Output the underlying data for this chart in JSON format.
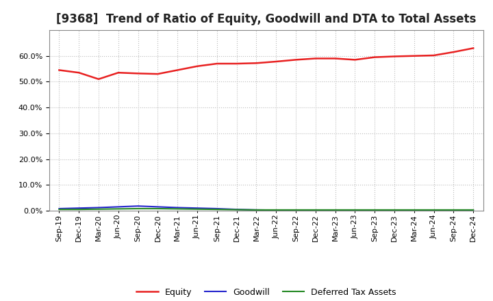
{
  "title": "[9368]  Trend of Ratio of Equity, Goodwill and DTA to Total Assets",
  "x_labels": [
    "Sep-19",
    "Dec-19",
    "Mar-20",
    "Jun-20",
    "Sep-20",
    "Dec-20",
    "Mar-21",
    "Jun-21",
    "Sep-21",
    "Dec-21",
    "Mar-22",
    "Jun-22",
    "Sep-22",
    "Dec-22",
    "Mar-23",
    "Jun-23",
    "Sep-23",
    "Dec-23",
    "Mar-24",
    "Jun-24",
    "Sep-24",
    "Dec-24"
  ],
  "equity": [
    54.5,
    53.5,
    51.0,
    53.5,
    53.2,
    53.0,
    54.5,
    56.0,
    57.0,
    57.0,
    57.2,
    57.8,
    58.5,
    59.0,
    59.0,
    58.5,
    59.5,
    59.8,
    60.0,
    60.2,
    61.5,
    63.0
  ],
  "goodwill": [
    0.8,
    1.0,
    1.2,
    1.5,
    1.8,
    1.5,
    1.2,
    1.0,
    0.8,
    0.5,
    0.3,
    0.2,
    0.1,
    0.1,
    0.1,
    0.1,
    0.1,
    0.1,
    0.1,
    0.1,
    0.1,
    0.1
  ],
  "dta": [
    0.5,
    0.5,
    0.6,
    0.7,
    0.8,
    0.8,
    0.7,
    0.6,
    0.5,
    0.4,
    0.3,
    0.3,
    0.3,
    0.3,
    0.3,
    0.3,
    0.3,
    0.3,
    0.3,
    0.3,
    0.3,
    0.3
  ],
  "equity_color": "#e82020",
  "goodwill_color": "#2222cc",
  "dta_color": "#228822",
  "background_color": "#ffffff",
  "grid_color": "#bbbbbb",
  "ylim": [
    0,
    70
  ],
  "yticks": [
    0,
    10,
    20,
    30,
    40,
    50,
    60
  ],
  "legend_labels": [
    "Equity",
    "Goodwill",
    "Deferred Tax Assets"
  ],
  "title_fontsize": 12,
  "tick_fontsize": 8
}
